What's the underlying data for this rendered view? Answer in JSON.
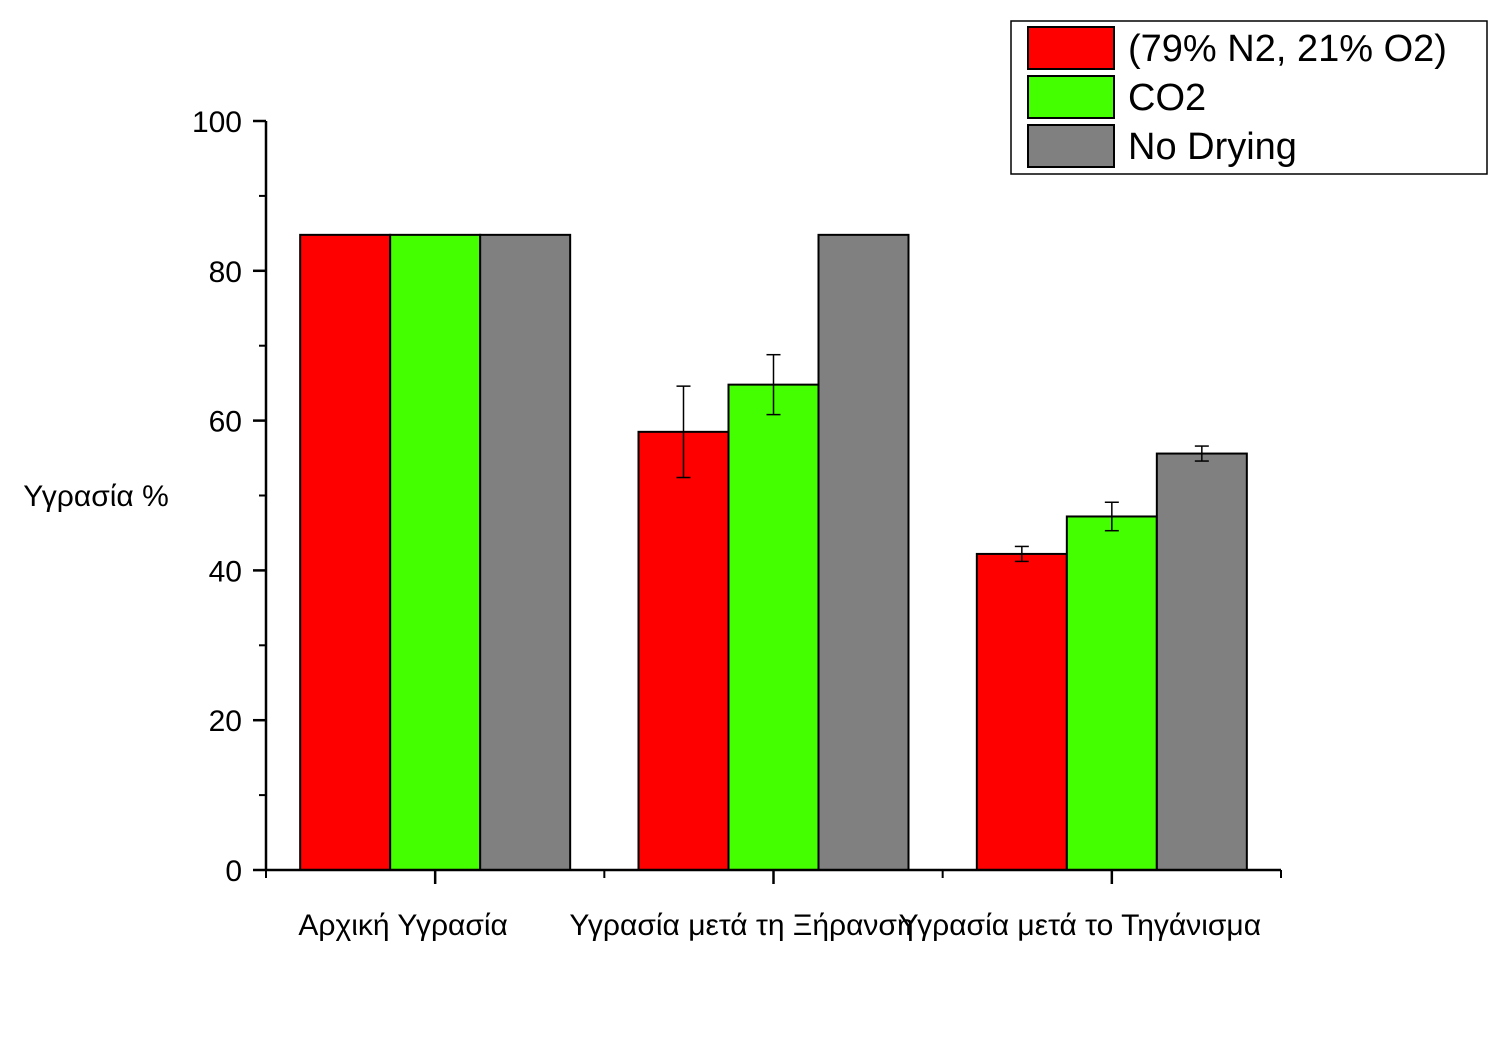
{
  "chart_data": {
    "type": "bar",
    "title": "",
    "xlabel": "",
    "ylabel": "Υγρασία %",
    "ylim": [
      0,
      100
    ],
    "yticks": [
      0,
      20,
      40,
      60,
      80,
      100
    ],
    "grid": false,
    "legend_position": "top-right",
    "categories": [
      "Αρχική Υγρασία",
      "Υγρασία μετά τη Ξήρανση",
      "Υγρασία μετά το Τηγάνισμα"
    ],
    "series": [
      {
        "name": "(79% N2, 21% O2)",
        "color": "#ff0000",
        "values": [
          84.8,
          58.5,
          42.2
        ],
        "errors": [
          null,
          6.1,
          1.0
        ]
      },
      {
        "name": "CO2",
        "color": "#44ff00",
        "values": [
          84.8,
          64.8,
          47.2
        ],
        "errors": [
          null,
          4.0,
          1.9
        ]
      },
      {
        "name": "No Drying",
        "color": "#808080",
        "values": [
          84.8,
          84.8,
          55.6
        ],
        "errors": [
          null,
          null,
          1.0
        ]
      }
    ]
  }
}
